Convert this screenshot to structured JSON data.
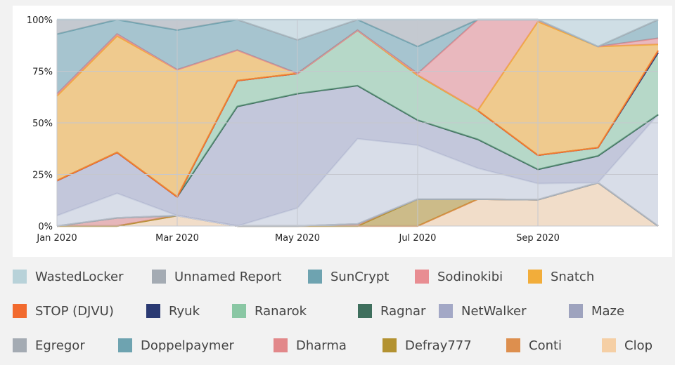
{
  "chart_data": {
    "type": "area",
    "stacked": "percent",
    "x": [
      "Jan 2020",
      "Feb 2020",
      "Mar 2020",
      "Apr 2020",
      "May 2020",
      "Jun 2020",
      "Jul 2020",
      "Aug 2020",
      "Sep 2020",
      "Oct 2020",
      "Nov 2020"
    ],
    "x_tick_labels": [
      "Jan 2020",
      "Mar 2020",
      "May 2020",
      "Jul 2020",
      "Sep 2020"
    ],
    "y_tick_labels": [
      "0%",
      "25%",
      "50%",
      "75%",
      "100%"
    ],
    "ylim": [
      0,
      100
    ],
    "grid": true,
    "legend_position": "bottom",
    "series": [
      {
        "name": "Clop",
        "color": "#f5cfa5",
        "values": [
          0,
          0,
          5,
          0,
          0,
          0,
          0,
          13,
          13,
          21,
          0
        ]
      },
      {
        "name": "Conti",
        "color": "#dd8f4e",
        "values": [
          0,
          0,
          0,
          0,
          0,
          0,
          0,
          0,
          0,
          0,
          0
        ]
      },
      {
        "name": "Defray777",
        "color": "#b39231",
        "values": [
          0,
          0,
          0,
          0,
          0,
          0,
          15,
          0,
          0,
          0,
          0
        ]
      },
      {
        "name": "Dharma",
        "color": "#e2888a",
        "values": [
          0,
          4,
          0,
          0,
          0,
          1,
          0,
          0,
          0,
          0,
          0
        ]
      },
      {
        "name": "Doppelpaymer",
        "color": "#6ea3b0",
        "values": [
          0,
          0,
          0,
          0,
          0,
          0,
          0,
          0,
          0,
          0,
          0
        ]
      },
      {
        "name": "Egregor",
        "color": "#a4abb3",
        "values": [
          0,
          0,
          0,
          0,
          0,
          0,
          0,
          0,
          0,
          0,
          0
        ]
      },
      {
        "name": "Maze",
        "color": "#c9cfdf",
        "values": [
          5,
          12,
          0,
          0,
          8,
          40,
          30,
          15,
          8,
          0,
          54
        ]
      },
      {
        "name": "NetWalker",
        "color": "#a3a8c6",
        "values": [
          17,
          20,
          9,
          51,
          51,
          25,
          14,
          14,
          7,
          13,
          0
        ]
      },
      {
        "name": "Ragnar",
        "color": "#3f6f5d",
        "values": [
          0,
          0,
          0,
          0,
          0,
          0,
          0,
          0,
          0,
          0,
          0
        ]
      },
      {
        "name": "Ranarok",
        "color": "#8ac7a4",
        "values": [
          0,
          0,
          0,
          11,
          9,
          26,
          25,
          14,
          7,
          4,
          30
        ]
      },
      {
        "name": "Ryuk",
        "color": "#2b3a73",
        "values": [
          0,
          0,
          0,
          0,
          0,
          0,
          0,
          0,
          0,
          0,
          0
        ]
      },
      {
        "name": "STOP (DJVU)",
        "color": "#f26a2e",
        "values": [
          0,
          0,
          0,
          0,
          0,
          0,
          0,
          0,
          0,
          0,
          1
        ]
      },
      {
        "name": "Snatch",
        "color": "#f2ad3a",
        "values": [
          41,
          57,
          61,
          13,
          0,
          0,
          0,
          0,
          66,
          49,
          3
        ]
      },
      {
        "name": "Sodinokibi",
        "color": "#e88d92",
        "values": [
          1,
          1,
          0,
          0,
          0,
          0,
          1,
          44,
          1,
          0,
          3
        ]
      },
      {
        "name": "SunCrypt",
        "color": "#6ea3b0",
        "values": [
          29,
          7,
          19,
          13,
          15,
          5,
          15,
          0,
          0,
          0,
          9
        ]
      },
      {
        "name": "Unnamed Report",
        "color": "#a4abb3",
        "values": [
          7,
          0,
          5,
          0,
          0,
          0,
          15,
          0,
          0,
          0,
          0
        ]
      },
      {
        "name": "WastedLocker",
        "color": "#b8d2d9",
        "values": [
          0,
          0,
          0,
          0,
          9,
          0,
          0,
          0,
          0,
          13,
          0
        ]
      }
    ]
  },
  "legend": [
    {
      "label": "WastedLocker",
      "color": "#b8d2d9"
    },
    {
      "label": "Unnamed Report",
      "color": "#a4abb3"
    },
    {
      "label": "SunCrypt",
      "color": "#6ea3b0"
    },
    {
      "label": "Sodinokibi",
      "color": "#e88d92"
    },
    {
      "label": "Snatch",
      "color": "#f2ad3a"
    },
    {
      "label": "STOP (DJVU)",
      "color": "#f26a2e"
    },
    {
      "label": "Ryuk",
      "color": "#2b3a73"
    },
    {
      "label": "Ranarok",
      "color": "#8ac7a4"
    },
    {
      "label": "Ragnar",
      "color": "#3f6f5d"
    },
    {
      "label": "NetWalker",
      "color": "#a3a8c6"
    },
    {
      "label": "Maze",
      "color": "#9ea3be"
    },
    {
      "label": "Egregor",
      "color": "#a4abb3"
    },
    {
      "label": "Doppelpaymer",
      "color": "#6ea3b0"
    },
    {
      "label": "Dharma",
      "color": "#e2888a"
    },
    {
      "label": "Defray777",
      "color": "#b39231"
    },
    {
      "label": "Conti",
      "color": "#dd8f4e"
    },
    {
      "label": "Clop",
      "color": "#f5cfa5"
    }
  ]
}
